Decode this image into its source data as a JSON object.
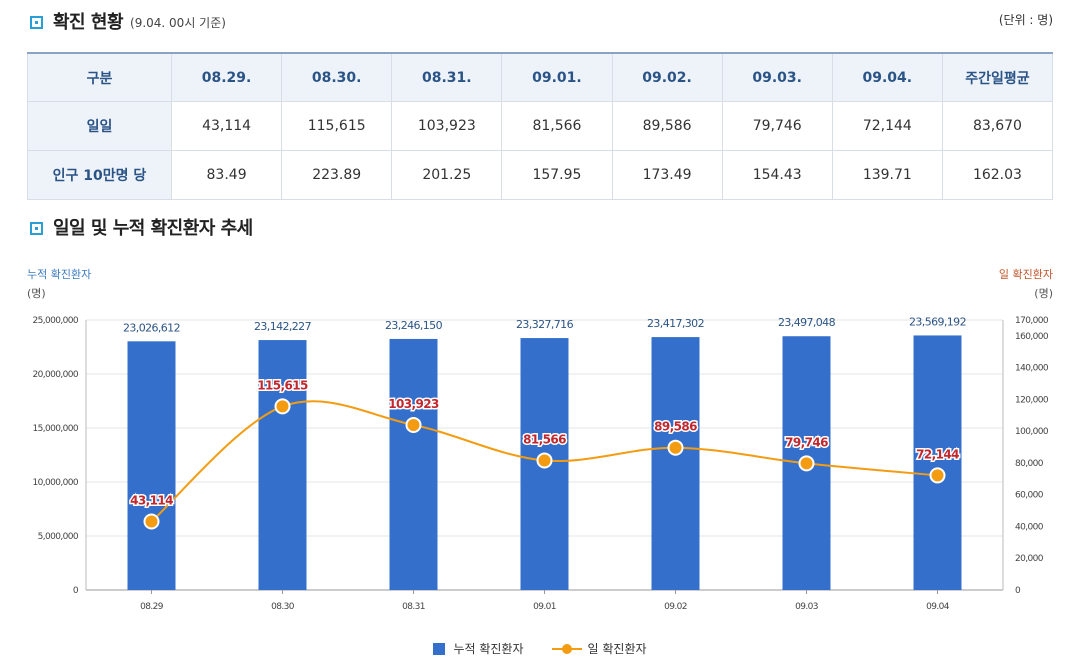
{
  "section1": {
    "title": "확진 현황",
    "subtitle": "(9.04. 00시 기준)",
    "unit": "(단위 : 명)"
  },
  "table": {
    "headers": [
      "구분",
      "08.29.",
      "08.30.",
      "08.31.",
      "09.01.",
      "09.02.",
      "09.03.",
      "09.04.",
      "주간일평균"
    ],
    "rows": [
      [
        "일일",
        "43,114",
        "115,615",
        "103,923",
        "81,566",
        "89,586",
        "79,746",
        "72,144",
        "83,670"
      ],
      [
        "인구 10만명 당",
        "83.49",
        "223.89",
        "201.25",
        "157.95",
        "173.49",
        "154.43",
        "139.71",
        "162.03"
      ]
    ]
  },
  "section2": {
    "title": "일일 및 누적 확진환자 추세"
  },
  "axes": {
    "left_title": "누적 확진환자",
    "left_unit": "(명)",
    "right_title": "일 확진환자",
    "right_unit": "(명)"
  },
  "legend": {
    "bar": "누적 확진환자",
    "line": "일 확진환자"
  },
  "colors": {
    "bar": "#3470cb",
    "line": "#f39c12",
    "header_text": "#2b5486",
    "line_label": "#c1272d"
  },
  "chart_data": {
    "type": "bar",
    "categories": [
      "08.29",
      "08.30",
      "08.31",
      "09.01",
      "09.02",
      "09.03",
      "09.04"
    ],
    "series": [
      {
        "name": "누적 확진환자",
        "type": "bar",
        "axis": "left",
        "values": [
          23026612,
          23142227,
          23246150,
          23327716,
          23417302,
          23497048,
          23569192
        ]
      },
      {
        "name": "일 확진환자",
        "type": "line",
        "axis": "right",
        "values": [
          43114,
          115615,
          103923,
          81566,
          89586,
          79746,
          72144
        ]
      }
    ],
    "bar_labels": [
      "23,026,612",
      "23,142,227",
      "23,246,150",
      "23,327,716",
      "23,417,302",
      "23,497,048",
      "23,569,192"
    ],
    "line_labels": [
      "43,114",
      "115,615",
      "103,923",
      "81,566",
      "89,586",
      "79,746",
      "72,144"
    ],
    "left_axis": {
      "ylim": [
        0,
        25000000
      ],
      "ticks": [
        0,
        5000000,
        10000000,
        15000000,
        20000000,
        25000000
      ],
      "tick_labels": [
        "0",
        "5,000,000",
        "10,000,000",
        "15,000,000",
        "20,000,000",
        "25,000,000"
      ]
    },
    "right_axis": {
      "ylim": [
        0,
        170000
      ],
      "ticks": [
        0,
        20000,
        40000,
        60000,
        80000,
        100000,
        120000,
        140000,
        160000,
        170000
      ],
      "tick_labels": [
        "0",
        "20,000",
        "40,000",
        "60,000",
        "80,000",
        "100,000",
        "120,000",
        "140,000",
        "160,000",
        "170,000"
      ]
    },
    "grid": true,
    "legend_position": "bottom"
  }
}
